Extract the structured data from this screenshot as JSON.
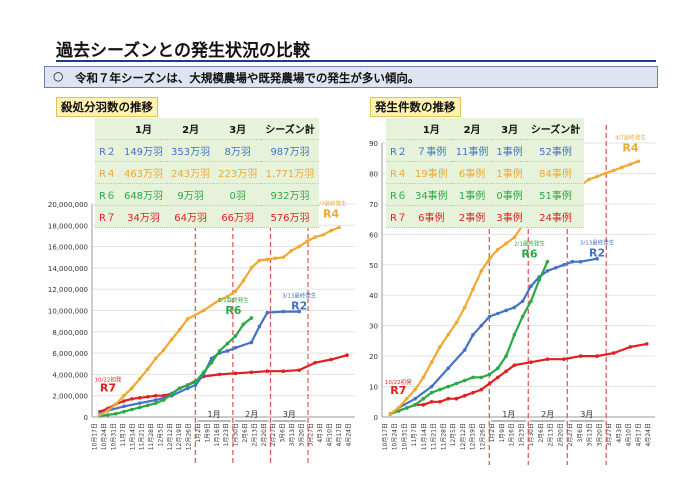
{
  "page": {
    "title": "過去シーズンとの発生状況の比較",
    "banner_mark": "○",
    "banner_text": "令和７年シーズンは、大規模農場や既発農場での発生が多い傾向。"
  },
  "colors": {
    "R2": "#4472c4",
    "R4": "#f0a830",
    "R6": "#2aa845",
    "R7": "#e02020",
    "Rmark": "#e0a0a0"
  },
  "chart_data": [
    {
      "type": "line",
      "title": "殺処分羽数の推移",
      "ylim": [
        0,
        20000000
      ],
      "yticks": [
        0,
        2000000,
        4000000,
        6000000,
        8000000,
        10000000,
        12000000,
        14000000,
        16000000,
        18000000,
        20000000
      ],
      "ytick_labels": [
        "0",
        "2,000,000",
        "4,000,000",
        "6,000,000",
        "8,000,000",
        "10,000,000",
        "12,000,000",
        "14,000,000",
        "16,000,000",
        "18,000,000",
        "20,000,000"
      ],
      "x_labels": [
        "10月17日",
        "10月24日",
        "10月31日",
        "11月7日",
        "11月14日",
        "11月21日",
        "11月28日",
        "12月5日",
        "12月12日",
        "12月19日",
        "12月26日",
        "1月2日",
        "1月9日",
        "1月16日",
        "1月23日",
        "1月30日",
        "2月6日",
        "2月13日",
        "2月20日",
        "2月27日",
        "3月6日",
        "3月13日",
        "3月20日",
        "3月27日",
        "4月3日",
        "4月10日",
        "4月17日",
        "4月24日"
      ],
      "month_labels": [
        "1月",
        "2月",
        "3月"
      ],
      "table": {
        "headers": [
          "",
          "1月",
          "2月",
          "3月",
          "シーズン計"
        ],
        "rows": [
          {
            "key": "R2",
            "cells": [
              "R２",
              "149万羽",
              "353万羽",
              "8万羽",
              "987万羽"
            ]
          },
          {
            "key": "R4",
            "cells": [
              "R４",
              "463万羽",
              "243万羽",
              "223万羽",
              "1,771万羽"
            ]
          },
          {
            "key": "R6",
            "cells": [
              "R６",
              "648万羽",
              "9万羽",
              "0羽",
              "932万羽"
            ]
          },
          {
            "key": "R7",
            "cells": [
              "R７",
              "34万羽",
              "64万羽",
              "66万羽",
              "576万羽"
            ]
          }
        ]
      },
      "series": [
        {
          "name": "R2",
          "color": "#4472c4",
          "x": [
            1,
            2,
            4,
            6,
            8,
            10,
            12,
            13,
            14,
            15,
            16,
            17,
            18,
            20,
            21,
            22,
            24,
            26
          ],
          "y": [
            300000,
            600000,
            1000000,
            1300000,
            1600000,
            2000000,
            2700000,
            3000000,
            4000000,
            5500000,
            6000000,
            6200000,
            6500000,
            7000000,
            8500000,
            9800000,
            9900000,
            9900000
          ]
        },
        {
          "name": "R4",
          "color": "#f0a830",
          "x": [
            1,
            2,
            3,
            4,
            5,
            6,
            7,
            8,
            9,
            10,
            11,
            12,
            14,
            16,
            17,
            18,
            19,
            20,
            21,
            22,
            23,
            24,
            25,
            26,
            27,
            28,
            29,
            30,
            31
          ],
          "y": [
            200000,
            600000,
            1200000,
            2000000,
            2700000,
            3600000,
            4500000,
            5500000,
            6300000,
            7300000,
            8200000,
            9200000,
            10000000,
            11000000,
            11300000,
            11800000,
            12800000,
            14000000,
            14700000,
            14800000,
            14900000,
            15000000,
            15600000,
            16000000,
            16500000,
            16900000,
            17100000,
            17500000,
            17800000
          ]
        },
        {
          "name": "R6",
          "color": "#2aa845",
          "x": [
            1,
            2,
            3,
            4,
            5,
            6,
            7,
            8,
            9,
            10,
            11,
            12,
            13,
            14,
            15,
            16,
            17,
            18,
            19,
            20
          ],
          "y": [
            100000,
            200000,
            300000,
            500000,
            700000,
            900000,
            1100000,
            1300000,
            1600000,
            2200000,
            2700000,
            3000000,
            3300000,
            4200000,
            5100000,
            6200000,
            6900000,
            7600000,
            8700000,
            9300000
          ]
        },
        {
          "name": "R7",
          "color": "#e02020",
          "x": [
            1,
            2,
            3,
            4,
            5,
            6,
            7,
            8,
            9,
            10,
            11,
            12,
            14,
            16,
            18,
            20,
            22,
            24,
            26,
            28,
            30,
            32
          ],
          "y": [
            500000,
            800000,
            1200000,
            1500000,
            1700000,
            1800000,
            1900000,
            2000000,
            2000000,
            2200000,
            2700000,
            3000000,
            3800000,
            4000000,
            4100000,
            4200000,
            4300000,
            4300000,
            4400000,
            5100000,
            5400000,
            5800000
          ]
        }
      ],
      "annotations": [
        {
          "label": "4/7最終発生",
          "series": "R4"
        },
        {
          "label": "2/1最終発生",
          "series": "R6"
        },
        {
          "label": "3/13最終発生",
          "series": "R2"
        },
        {
          "label": "10/22初発",
          "series": "R7"
        }
      ]
    },
    {
      "type": "line",
      "title": "発生件数の推移",
      "ylim": [
        0,
        90
      ],
      "yticks": [
        0,
        10,
        20,
        30,
        40,
        50,
        60,
        70,
        80,
        90
      ],
      "ytick_labels": [
        "0",
        "10",
        "20",
        "30",
        "40",
        "50",
        "60",
        "70",
        "80",
        "90"
      ],
      "x_labels": [
        "10月17日",
        "10月24日",
        "10月31日",
        "11月7日",
        "11月14日",
        "11月21日",
        "11月28日",
        "12月5日",
        "12月12日",
        "12月19日",
        "12月26日",
        "1月2日",
        "1月9日",
        "1月16日",
        "1月23日",
        "1月30日",
        "2月6日",
        "2月13日",
        "2月20日",
        "2月27日",
        "3月6日",
        "3月13日",
        "3月20日",
        "3月27日",
        "4月3日",
        "4月10日",
        "4月17日",
        "4月24日"
      ],
      "month_labels": [
        "1月",
        "2月",
        "3月"
      ],
      "table": {
        "headers": [
          "",
          "1月",
          "2月",
          "3月",
          "シーズン計"
        ],
        "rows": [
          {
            "key": "R2",
            "cells": [
              "R２",
              "７事例",
              "11事例",
              "1事例",
              "52事例"
            ]
          },
          {
            "key": "R4",
            "cells": [
              "R４",
              "19事例",
              "6事例",
              "1事例",
              "84事例"
            ]
          },
          {
            "key": "R6",
            "cells": [
              "R６",
              "34事例",
              "1事例",
              "0事例",
              "51事例"
            ]
          },
          {
            "key": "R7",
            "cells": [
              "R７",
              "6事例",
              "2事例",
              "3事例",
              "24事例"
            ]
          }
        ]
      },
      "series": [
        {
          "name": "R2",
          "color": "#4472c4",
          "x": [
            1,
            2,
            4,
            6,
            8,
            10,
            11,
            12,
            13,
            14,
            15,
            16,
            17,
            18,
            19,
            20,
            21,
            22,
            23,
            24,
            26
          ],
          "y": [
            1,
            3,
            6,
            10,
            16,
            22,
            27,
            30,
            33,
            34,
            35,
            36,
            38,
            43,
            46,
            48,
            49,
            50,
            51,
            51,
            52
          ]
        },
        {
          "name": "R4",
          "color": "#f0a830",
          "x": [
            1,
            2,
            3,
            4,
            5,
            6,
            7,
            8,
            9,
            10,
            11,
            12,
            13,
            14,
            15,
            16,
            17,
            18,
            19,
            20,
            21,
            22,
            23,
            24,
            25,
            26,
            27,
            28,
            29,
            30,
            31
          ],
          "y": [
            1,
            3,
            6,
            9,
            13,
            18,
            23,
            27,
            31,
            36,
            42,
            48,
            52,
            55,
            57,
            59,
            63,
            66,
            69,
            73,
            75,
            76,
            76,
            76,
            78,
            79,
            80,
            81,
            82,
            83,
            84
          ]
        },
        {
          "name": "R6",
          "color": "#2aa845",
          "x": [
            1,
            2,
            3,
            4,
            5,
            6,
            7,
            8,
            9,
            10,
            11,
            12,
            13,
            14,
            15,
            16,
            17,
            18,
            19,
            20
          ],
          "y": [
            1,
            2,
            3,
            4,
            6,
            8,
            9,
            10,
            11,
            12,
            13,
            13,
            14,
            16,
            20,
            27,
            33,
            38,
            45,
            51
          ]
        },
        {
          "name": "R7",
          "color": "#e02020",
          "x": [
            1,
            2,
            3,
            4,
            5,
            6,
            7,
            8,
            9,
            10,
            11,
            12,
            13,
            14,
            15,
            16,
            18,
            20,
            22,
            24,
            26,
            28,
            30,
            32
          ],
          "y": [
            1,
            2,
            3,
            4,
            4,
            5,
            5,
            6,
            6,
            7,
            8,
            9,
            11,
            13,
            15,
            17,
            18,
            19,
            19,
            20,
            20,
            21,
            23,
            24
          ]
        }
      ],
      "annotations": [
        {
          "label": "4/7最終発生",
          "series": "R4"
        },
        {
          "label": "2/1最終発生",
          "series": "R6"
        },
        {
          "label": "3/13最終発生",
          "series": "R2"
        },
        {
          "label": "10/22初発",
          "series": "R7"
        }
      ]
    }
  ]
}
